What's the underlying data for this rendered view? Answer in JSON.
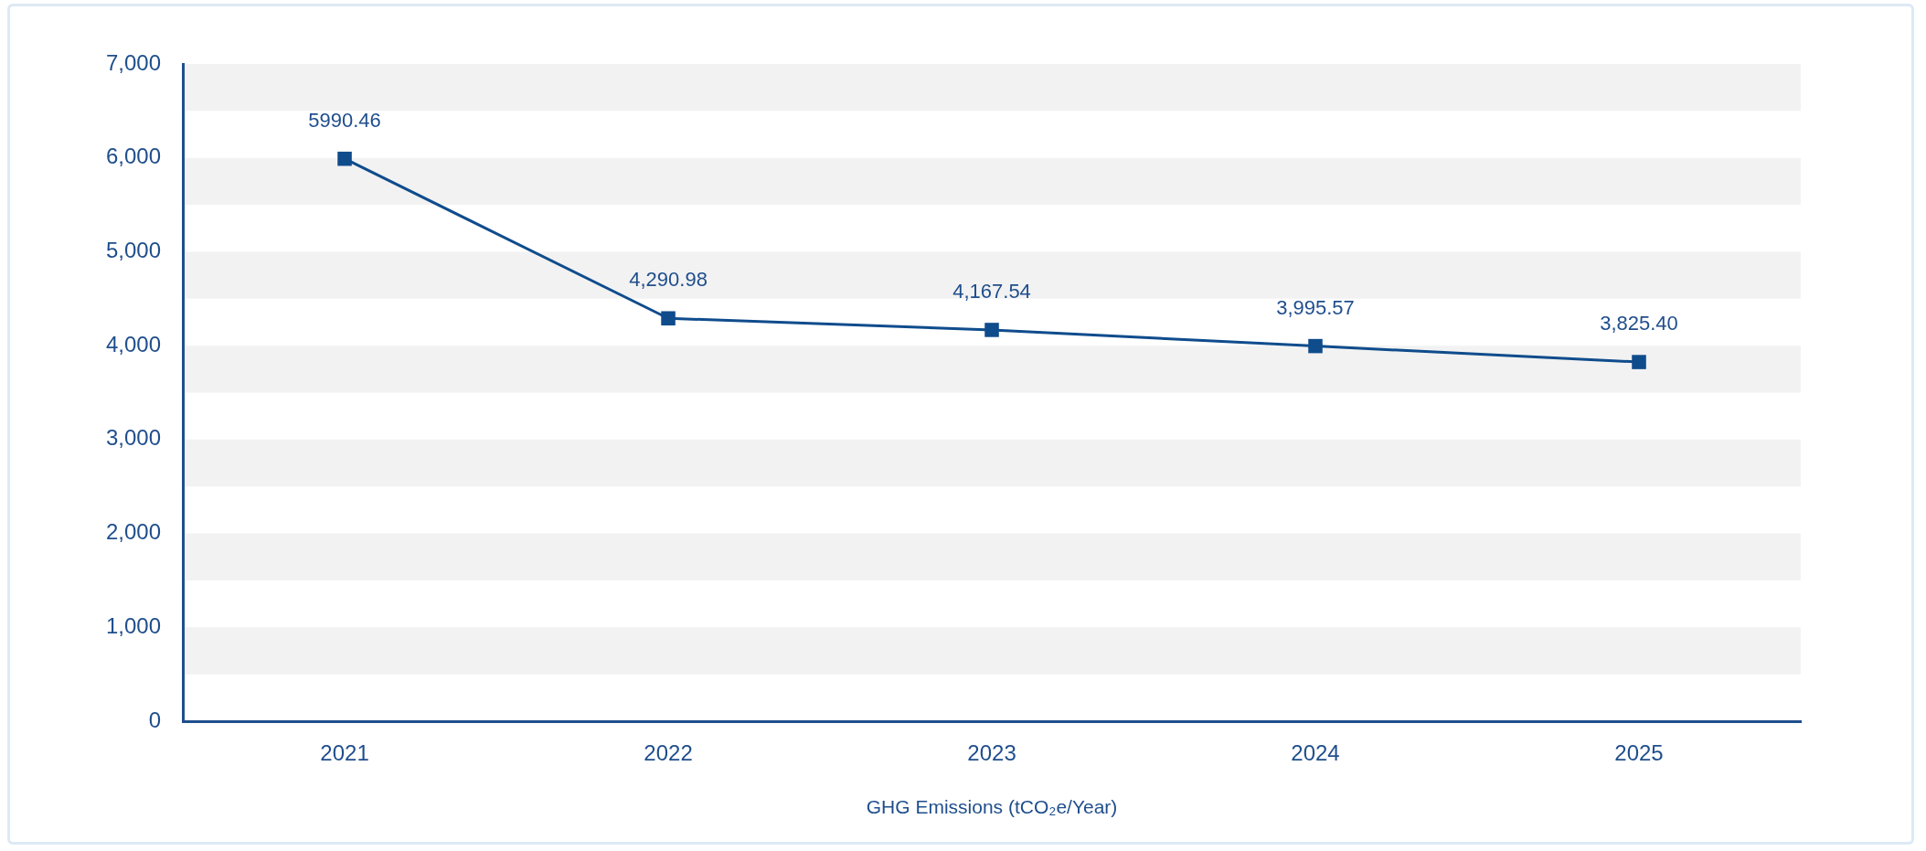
{
  "chart_data": {
    "type": "line",
    "xlabel": "GHG Emissions (tCO₂e/Year)",
    "categories": [
      "2021",
      "2022",
      "2023",
      "2024",
      "2025"
    ],
    "series": [
      {
        "color": "#0f4c8c",
        "values": [
          5990.46,
          4290.98,
          4167.54,
          3995.57,
          3825.4
        ]
      }
    ],
    "value_labels": [
      "5990.46",
      "4,290.98",
      "4,167.54",
      "3,995.57",
      "3,825.40"
    ],
    "ylim": [
      0,
      7000
    ],
    "yticks": [
      {
        "value": 0,
        "label": "0"
      },
      {
        "value": 1000,
        "label": "1,000"
      },
      {
        "value": 2000,
        "label": "2,000"
      },
      {
        "value": 3000,
        "label": "3,000"
      },
      {
        "value": 4000,
        "label": "4,000"
      },
      {
        "value": 5000,
        "label": "5,000"
      },
      {
        "value": 6000,
        "label": "6,000"
      },
      {
        "value": 7000,
        "label": "7,000"
      }
    ],
    "bands": [
      {
        "axis": "y",
        "from": 500,
        "to": 1000,
        "color": "#f2f2f2"
      },
      {
        "axis": "y",
        "from": 1500,
        "to": 2000,
        "color": "#f2f2f2"
      },
      {
        "axis": "y",
        "from": 2500,
        "to": 3000,
        "color": "#f2f2f2"
      },
      {
        "axis": "y",
        "from": 3500,
        "to": 4000,
        "color": "#f2f2f2"
      },
      {
        "axis": "y",
        "from": 4500,
        "to": 5000,
        "color": "#f2f2f2"
      },
      {
        "axis": "y",
        "from": 5500,
        "to": 6000,
        "color": "#f2f2f2"
      },
      {
        "axis": "y",
        "from": 6500,
        "to": 7000,
        "color": "#f2f2f2"
      }
    ],
    "grid": false,
    "marker": "square",
    "line_style": "solid",
    "legend": false
  }
}
